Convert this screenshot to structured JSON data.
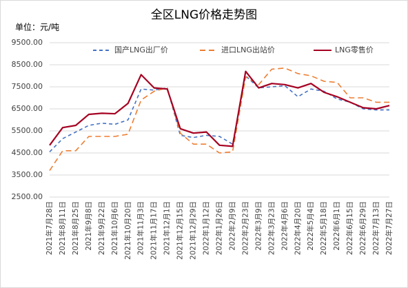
{
  "chart_data": {
    "type": "line",
    "title": "全区LNG价格走势图",
    "unit_label": "单位：元/吨",
    "categories": [
      "2021年7月28日",
      "2021年8月11日",
      "2021年8月25日",
      "2021年9月8日",
      "2021年9月22日",
      "2021年10月6日",
      "2021年10月20日",
      "2021年11月3日",
      "2021年11月17日",
      "2021年12月1日",
      "2021年12月15日",
      "2021年12月29日",
      "2022年1月12日",
      "2022年1月26日",
      "2022年2月9日",
      "2022年2月23日",
      "2022年3月9日",
      "2022年3月23日",
      "2022年4月6日",
      "2022年4月20日",
      "2022年5月4日",
      "2022年5月18日",
      "2022年6月1日",
      "2022年6月15日",
      "2022年6月29日",
      "2022年7月13日",
      "2022年7月27日"
    ],
    "series": [
      {
        "name": "国产LNG出厂价",
        "color": "#4472c4",
        "dash": "5,4",
        "values": [
          4550,
          5150,
          5450,
          5750,
          5850,
          5800,
          6000,
          7400,
          7350,
          7450,
          5300,
          5200,
          5300,
          5250,
          4900,
          8000,
          7450,
          7500,
          7550,
          7050,
          7400,
          7300,
          6950,
          6800,
          6500,
          6450,
          6450
        ]
      },
      {
        "name": "进口LNG出站价",
        "color": "#ed7d31",
        "dash": "8,5",
        "values": [
          3700,
          4600,
          4600,
          5250,
          5250,
          5250,
          5350,
          6900,
          7300,
          7450,
          5400,
          4900,
          4900,
          4500,
          4550,
          7950,
          7600,
          8300,
          8350,
          8100,
          8000,
          7750,
          7700,
          7000,
          7000,
          6800,
          6800
        ]
      },
      {
        "name": "LNG零售价",
        "color": "#a50021",
        "dash": "",
        "values": [
          4850,
          5650,
          5750,
          6250,
          6300,
          6280,
          6750,
          8050,
          7450,
          7400,
          5600,
          5400,
          5450,
          4850,
          4800,
          8200,
          7450,
          7650,
          7600,
          7450,
          7650,
          7250,
          7050,
          6800,
          6550,
          6500,
          6650
        ]
      }
    ],
    "ylim": [
      2500,
      9500
    ],
    "yticks": [
      {
        "value": 2500,
        "label": "2500.00"
      },
      {
        "value": 3500,
        "label": "3500.00"
      },
      {
        "value": 4500,
        "label": "4500.00"
      },
      {
        "value": 5500,
        "label": "5500.00"
      },
      {
        "value": 6500,
        "label": "6500.00"
      },
      {
        "value": 7500,
        "label": "7500.00"
      },
      {
        "value": 8500,
        "label": "8500.00"
      },
      {
        "value": 9500,
        "label": "9500.00"
      }
    ],
    "grid": true
  }
}
